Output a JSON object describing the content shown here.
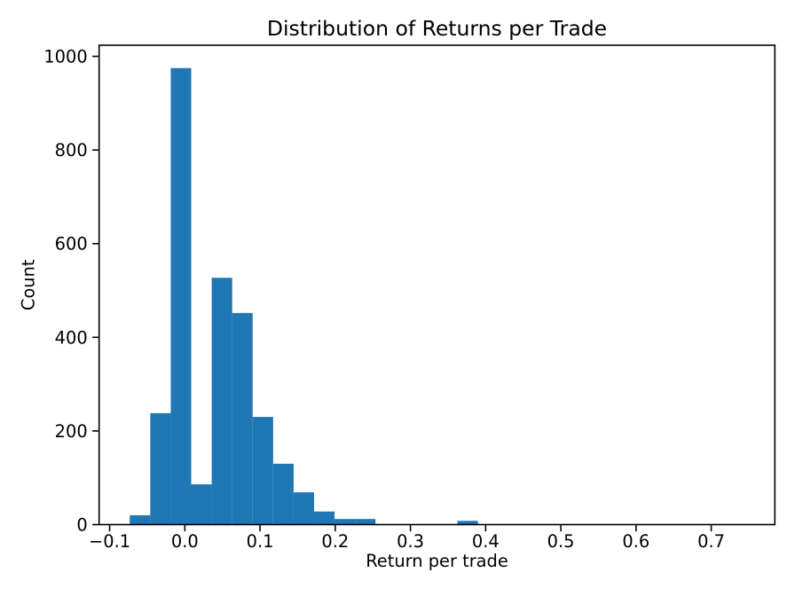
{
  "chart_data": {
    "type": "bar",
    "subtype": "histogram",
    "title": "Distribution of Returns per Trade",
    "xlabel": "Return per trade",
    "ylabel": "Count",
    "bar_color": "#1f77b4",
    "axis_color": "#000000",
    "background_color": "#ffffff",
    "grid": false,
    "legend": null,
    "xlim": [
      -0.114,
      0.7846
    ],
    "ylim": [
      0,
      1023.75
    ],
    "bins": {
      "start": -0.0732,
      "width": 0.02723,
      "count": 30
    },
    "counts": [
      20,
      238,
      975,
      86,
      527,
      452,
      230,
      130,
      69,
      28,
      12,
      12,
      0,
      0,
      0,
      0,
      8,
      0,
      0,
      0,
      0,
      0,
      0,
      0,
      0,
      0,
      0,
      0,
      0,
      1
    ],
    "xticks": [
      {
        "v": -0.1,
        "label": "−0.1"
      },
      {
        "v": 0.0,
        "label": "0.0"
      },
      {
        "v": 0.1,
        "label": "0.1"
      },
      {
        "v": 0.2,
        "label": "0.2"
      },
      {
        "v": 0.3,
        "label": "0.3"
      },
      {
        "v": 0.4,
        "label": "0.4"
      },
      {
        "v": 0.5,
        "label": "0.5"
      },
      {
        "v": 0.6,
        "label": "0.6"
      },
      {
        "v": 0.7,
        "label": "0.7"
      }
    ],
    "yticks": [
      {
        "v": 0,
        "label": "0"
      },
      {
        "v": 200,
        "label": "200"
      },
      {
        "v": 400,
        "label": "400"
      },
      {
        "v": 600,
        "label": "600"
      },
      {
        "v": 800,
        "label": "800"
      },
      {
        "v": 1000,
        "label": "1000"
      }
    ]
  }
}
